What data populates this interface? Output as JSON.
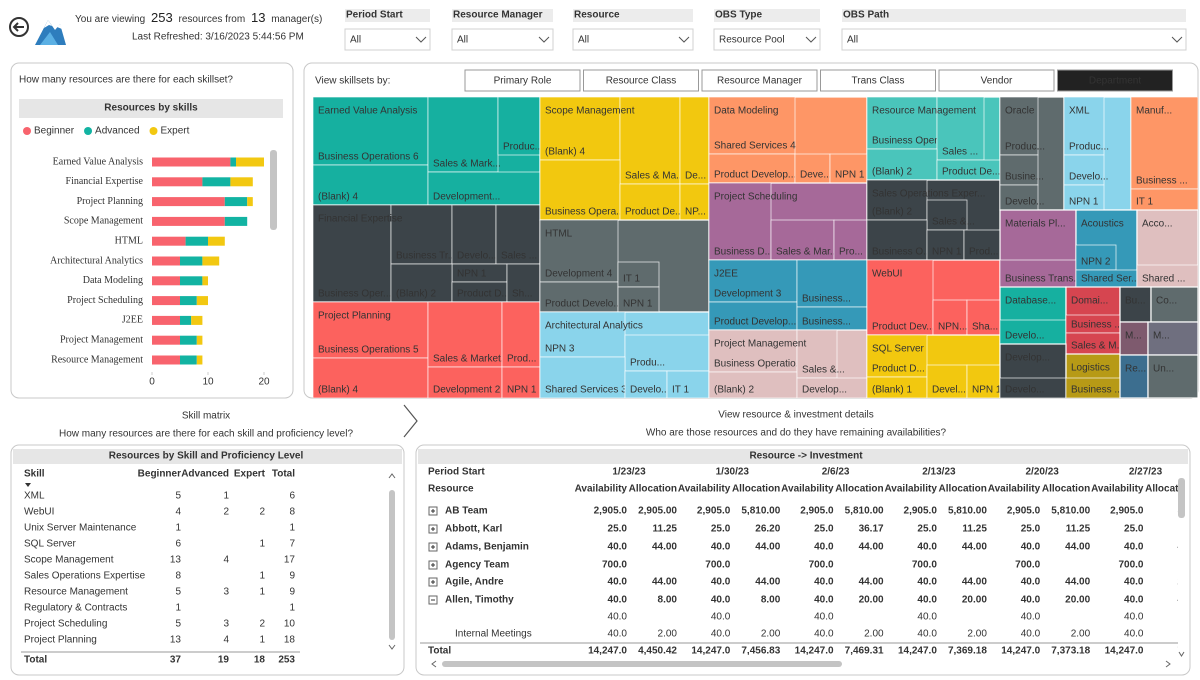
{
  "header": {
    "viewing_prefix": "You are viewing",
    "resource_count": 253,
    "viewing_mid": "resources from",
    "manager_count": 13,
    "viewing_suffix": "manager(s)",
    "last_refreshed": "Last Refreshed: 3/16/2023 5:44:56 PM"
  },
  "filters": [
    {
      "label": "Period Start",
      "value": "All"
    },
    {
      "label": "Resource Manager",
      "value": "All"
    },
    {
      "label": "Resource",
      "value": "All"
    },
    {
      "label": "OBS Type",
      "value": "Resource Pool"
    },
    {
      "label": "OBS Path",
      "value": "All"
    }
  ],
  "skillset_panel": {
    "question": "How many resources are there for each skillset?"
  },
  "chart_data": {
    "type": "bar",
    "orientation": "horizontal",
    "stacked": true,
    "title": "Resources by skills",
    "categories": [
      "Earned Value Analysis",
      "Financial Expertise",
      "Project Planning",
      "Scope Management",
      "HTML",
      "Architectural Analytics",
      "Data Modeling",
      "Project Scheduling",
      "J2EE",
      "Project Management",
      "Resource Management"
    ],
    "series": [
      {
        "name": "Beginner",
        "color": "#F8636D",
        "values": [
          14,
          9,
          13,
          13,
          6,
          5,
          5,
          5,
          5,
          5,
          5
        ]
      },
      {
        "name": "Advanced",
        "color": "#12B3A2",
        "values": [
          1,
          5,
          4,
          4,
          4,
          4,
          4,
          3,
          2,
          3,
          3
        ]
      },
      {
        "name": "Expert",
        "color": "#F2C811",
        "values": [
          5,
          4,
          1,
          0,
          3,
          3,
          1,
          2,
          2,
          1,
          1
        ]
      }
    ],
    "xlim": [
      0,
      21
    ],
    "xticks": [
      0,
      10,
      20
    ],
    "legend": "top-left"
  },
  "treemap": {
    "prompt": "View skillsets by:",
    "buttons": [
      "Primary Role",
      "Resource Class",
      "Resource Manager",
      "Trans Class",
      "Vendor",
      "Department"
    ],
    "selected_button": "Department",
    "groups": [
      {
        "name": "Earned Value Analysis",
        "color": "#16B0A0",
        "leaves": [
          "Business Operations 6",
          "(Blank) 4",
          "Sales & Mark...",
          "Produc...",
          "Development..."
        ]
      },
      {
        "name": "Financial Expertise",
        "color": "#3C4449",
        "leaves": [
          "Business Oper...",
          "Business Tr...",
          "Develo...",
          "Sales ...",
          "NPN 1",
          "(Blank) 2",
          "Product D...",
          "Sh..."
        ]
      },
      {
        "name": "Project Planning",
        "color": "#FC625E",
        "leaves": [
          "Business Operations 5",
          "(Blank) 4",
          "Sales & Market...",
          "Prod...",
          "Development 2",
          "NPN 1"
        ]
      },
      {
        "name": "Scope Management",
        "color": "#F2C80F",
        "leaves": [
          "(Blank) 4",
          "Sales & Ma...",
          "De...",
          "Business Opera...",
          "Product De...",
          "NP..."
        ]
      },
      {
        "name": "HTML",
        "color": "#5F6B6D",
        "leaves": [
          "Development 4",
          "Product Develo...",
          "IT 1",
          "NPN 1"
        ]
      },
      {
        "name": "Architectural Analytics",
        "color": "#8AD4EB",
        "leaves": [
          "NPN 3",
          "Produ...",
          "Shared Services 3",
          "Develo...",
          "IT 1"
        ]
      },
      {
        "name": "Data Modeling",
        "color": "#FE9666",
        "leaves": [
          "Shared Services 4",
          "Product Develop...",
          "Deve...",
          "NPN 1"
        ]
      },
      {
        "name": "Project Scheduling",
        "color": "#A66999",
        "leaves": [
          "Business D...",
          "Sales & Mar...",
          "Pro..."
        ]
      },
      {
        "name": "J2EE",
        "color": "#3599B8",
        "leaves": [
          "Development 3",
          "Product Develop... 2",
          "Business...",
          "Business..."
        ]
      },
      {
        "name": "Project Management",
        "color": "#DFBFBF",
        "leaves": [
          "Business Operatio...",
          "(Blank) 2",
          "Sales &...",
          "Develop..."
        ]
      },
      {
        "name": "Resource Management",
        "color": "#4AC5BB",
        "leaves": [
          "Business Oper...",
          "Sales ...",
          "(Blank) 2",
          "Product De..."
        ]
      },
      {
        "name": "Sales Operations Exper...",
        "color": "#3C4449",
        "leaves": [
          "(Blank) 2",
          "Sales &...",
          "Business O...",
          "NPN 1",
          "Prod..."
        ]
      },
      {
        "name": "WebUI",
        "color": "#FC625E",
        "leaves": [
          "Product Dev...",
          "NPN...",
          "Sha..."
        ]
      },
      {
        "name": "SQL Server",
        "color": "#F2C80F",
        "leaves": [
          "Product D...",
          "(Blank) 1",
          "Devel...",
          "NPN 1"
        ]
      },
      {
        "name": "Oracle",
        "color": "#5F6B6D",
        "leaves": [
          "Produc...",
          "Busine...",
          "Develo..."
        ]
      },
      {
        "name": "XML",
        "color": "#8AD4EB",
        "leaves": [
          "Produc...",
          "Develo...",
          "NPN 1"
        ]
      },
      {
        "name": "Manuf...",
        "color": "#FE9666",
        "leaves": [
          "Business ...",
          "IT 1"
        ]
      },
      {
        "name": "Materials Pl...",
        "color": "#A66999",
        "leaves": [
          "Business Trans..."
        ]
      },
      {
        "name": "Acoustics",
        "color": "#3599B8",
        "leaves": [
          "NPN 2",
          "Shared Ser..."
        ]
      },
      {
        "name": "Acco...",
        "color": "#DFBFBF",
        "leaves": [
          "Shared ..."
        ]
      },
      {
        "name": "Database...",
        "color": "#16B0A0",
        "leaves": [
          "Develo..."
        ]
      },
      {
        "name": "Domai...",
        "color": "#D64550",
        "leaves": [
          "Business ...",
          "Sales & M..."
        ]
      },
      {
        "name": "Bu...",
        "color": "#3C4449",
        "leaves": []
      },
      {
        "name": "Co...",
        "color": "#5F6B6D",
        "leaves": []
      },
      {
        "name": "Develop...",
        "color": "#3C4449",
        "leaves": [
          "Develo..."
        ]
      },
      {
        "name": "Logistics",
        "color": "#B79A16",
        "leaves": [
          "Business ..."
        ]
      },
      {
        "name": "M...",
        "color": "#7E5A6E",
        "leaves": []
      },
      {
        "name": "M...",
        "color": "#6F6F7F",
        "leaves": []
      },
      {
        "name": "Re...",
        "color": "#3C6E8F",
        "leaves": []
      },
      {
        "name": "Un...",
        "color": "#5F6B6D",
        "leaves": []
      }
    ]
  },
  "skill_matrix_nav": {
    "title": "Skill matrix",
    "subtitle": "How many resources are there for each skill and proficiency level?"
  },
  "investment_nav": {
    "title": "View resource & investment details",
    "subtitle": "Who are those resources and do they have remaining availabilities?"
  },
  "skill_table": {
    "title": "Resources by Skill and Proficiency Level",
    "columns": [
      "Skill",
      "Beginner",
      "Advanced",
      "Expert",
      "Total"
    ],
    "rows": [
      [
        "XML",
        5,
        1,
        null,
        6
      ],
      [
        "WebUI",
        4,
        2,
        2,
        8
      ],
      [
        "Unix Server Maintenance",
        1,
        null,
        null,
        1
      ],
      [
        "SQL Server",
        6,
        null,
        1,
        7
      ],
      [
        "Scope Management",
        13,
        4,
        null,
        17
      ],
      [
        "Sales Operations Expertise",
        8,
        null,
        1,
        9
      ],
      [
        "Resource Management",
        5,
        3,
        1,
        9
      ],
      [
        "Regulatory & Contracts",
        1,
        null,
        null,
        1
      ],
      [
        "Project Scheduling",
        5,
        3,
        2,
        10
      ],
      [
        "Project Planning",
        13,
        4,
        1,
        18
      ]
    ],
    "total": [
      "Total",
      37,
      19,
      18,
      253
    ]
  },
  "investment_table": {
    "title": "Resource -> Investment",
    "period_label": "Period Start",
    "resource_label": "Resource",
    "periods": [
      "1/23/23",
      "1/30/23",
      "2/6/23",
      "2/13/23",
      "2/20/23",
      "2/27/23"
    ],
    "measures": [
      "Availability",
      "Allocation"
    ],
    "rows": [
      {
        "name": "AB Team",
        "values": [
          "2,905.0",
          "2,905.00",
          "2,905.0",
          "5,810.00",
          "2,905.0",
          "5,810.00",
          "2,905.0",
          "5,810.00",
          "2,905.0",
          "5,810.00",
          "2,905.0",
          "5,81"
        ]
      },
      {
        "name": "Abbott, Karl",
        "values": [
          "25.0",
          "11.25",
          "25.0",
          "26.20",
          "25.0",
          "36.17",
          "25.0",
          "11.25",
          "25.0",
          "11.25",
          "25.0",
          "1"
        ]
      },
      {
        "name": "Adams, Benjamin",
        "values": [
          "40.0",
          "44.00",
          "40.0",
          "44.00",
          "40.0",
          "44.00",
          "40.0",
          "44.00",
          "40.0",
          "44.00",
          "40.0",
          "4"
        ]
      },
      {
        "name": "Agency Team",
        "values": [
          "700.0",
          null,
          "700.0",
          null,
          "700.0",
          null,
          "700.0",
          null,
          "700.0",
          null,
          "700.0",
          null
        ]
      },
      {
        "name": "Agile, Andre",
        "values": [
          "40.0",
          "44.00",
          "40.0",
          "44.00",
          "40.0",
          "44.00",
          "40.0",
          "44.00",
          "40.0",
          "44.00",
          "40.0",
          "2"
        ]
      },
      {
        "name": "Allen, Timothy",
        "values": [
          "40.0",
          "8.00",
          "40.0",
          "8.00",
          "40.0",
          "20.00",
          "40.0",
          "20.00",
          "40.0",
          "20.00",
          "40.0",
          "4"
        ]
      },
      {
        "name": null,
        "values": [
          "40.0",
          null,
          "40.0",
          null,
          "40.0",
          null,
          "40.0",
          null,
          "40.0",
          null,
          "40.0",
          null
        ]
      },
      {
        "name": "Internal Meetings",
        "values": [
          "40.0",
          "2.00",
          "40.0",
          "2.00",
          "40.0",
          "2.00",
          "40.0",
          "2.00",
          "40.0",
          "2.00",
          "40.0",
          "2"
        ]
      }
    ],
    "total": {
      "name": "Total",
      "values": [
        "14,247.0",
        "4,450.42",
        "14,247.0",
        "7,456.83",
        "14,247.0",
        "7,469.31",
        "14,247.0",
        "7,369.18",
        "14,247.0",
        "7,373.18",
        "14,247.0",
        "7,37"
      ]
    }
  }
}
